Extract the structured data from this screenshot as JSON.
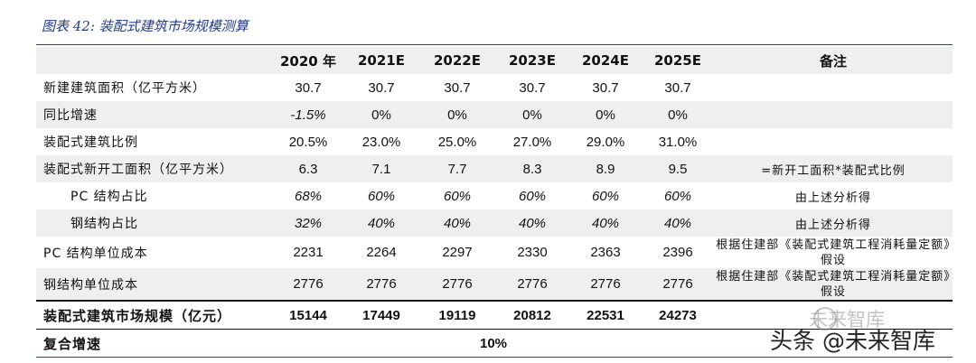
{
  "title": "图表 42:  装配式建筑市场规模测算",
  "header": [
    "",
    "2020 年",
    "2021E",
    "2022E",
    "2023E",
    "2024E",
    "2025E",
    "备注"
  ],
  "rows": [
    {
      "label": "新建建筑面积（亿平方米）",
      "values": [
        "30.7",
        "30.7",
        "30.7",
        "30.7",
        "30.7",
        "30.7"
      ],
      "note": ""
    },
    {
      "label": "同比增速",
      "values": [
        "-1.5%",
        "0%",
        "0%",
        "0%",
        "0%",
        "0%"
      ],
      "note": ""
    },
    {
      "label": "装配式建筑比例",
      "values": [
        "20.5%",
        "23.0%",
        "25.0%",
        "27.0%",
        "29.0%",
        "31.0%"
      ],
      "note": ""
    },
    {
      "label": "装配式新开工面积（亿平方米）",
      "values": [
        "6.3",
        "7.1",
        "7.7",
        "8.3",
        "8.9",
        "9.5"
      ],
      "note": "=新开工面积*装配式比例"
    },
    {
      "label": "PC 结构占比",
      "values": [
        "68%",
        "60%",
        "60%",
        "60%",
        "60%",
        "60%"
      ],
      "note": "由上述分析得"
    },
    {
      "label": "钢结构占比",
      "values": [
        "32%",
        "40%",
        "40%",
        "40%",
        "40%",
        "40%"
      ],
      "note": "由上述分析得"
    },
    {
      "label": "PC 结构单位成本",
      "values": [
        "2231",
        "2264",
        "2297",
        "2330",
        "2363",
        "2396"
      ],
      "note": "根据住建部《装配式建筑工程消耗量定额》假设"
    },
    {
      "label": "钢结构单位成本",
      "values": [
        "2776",
        "2776",
        "2776",
        "2776",
        "2776",
        "2776"
      ],
      "note": "根据住建部《装配式建筑工程消耗量定额》假设"
    }
  ],
  "total": {
    "label": "装配式建筑市场规模（亿元）",
    "values": [
      "15144",
      "17449",
      "19119",
      "20812",
      "22531",
      "24273"
    ]
  },
  "cagr": {
    "label": "复合增速",
    "value": "10%"
  },
  "watermark": {
    "text": "头条 @未来智库",
    "ghost": "未来智库"
  }
}
